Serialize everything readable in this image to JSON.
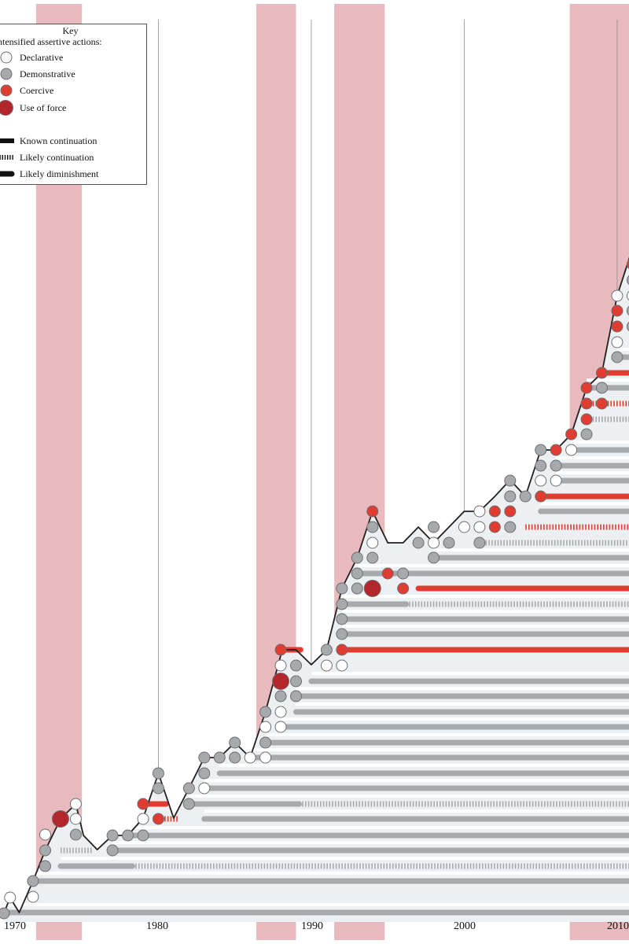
{
  "chart_data": {
    "type": "step-line",
    "x_ticks": [
      "1970",
      "1980",
      "1990",
      "2000",
      "2010"
    ],
    "shaded_periods": [
      [
        1971.3,
        1974.3
      ],
      [
        1985.7,
        1988.3
      ],
      [
        1990.8,
        1994.1
      ],
      [
        2006.2,
        2011
      ]
    ],
    "key": {
      "title": "Key",
      "subtitle": "Intensified assertive actions:",
      "markers": [
        {
          "id": "declarative",
          "label": "Declarative",
          "color": "#ffffff"
        },
        {
          "id": "demonstrative",
          "label": "Demonstrative",
          "color": "#a7a9ac"
        },
        {
          "id": "coercive",
          "label": "Coercive",
          "color": "#e03c31"
        },
        {
          "id": "force",
          "label": "Use of force",
          "color": "#b3262b"
        }
      ],
      "lines": [
        {
          "id": "known",
          "label": "Known continuation"
        },
        {
          "id": "likely",
          "label": "Likely continuation"
        },
        {
          "id": "dim",
          "label": "Likely diminishment"
        }
      ]
    },
    "colors": {
      "shade": "#e8b9bd",
      "band": "#edf0f3",
      "grey": "#a7a9ac",
      "red": "#e03c31",
      "darkred": "#b3262b",
      "line": "#231f20"
    },
    "outline": [
      [
        1969.2,
        1161
      ],
      [
        1969.6,
        1141
      ],
      [
        1970.2,
        1160
      ],
      [
        1971.1,
        1120
      ],
      [
        1971.9,
        1081
      ],
      [
        1972.9,
        1041
      ],
      [
        1973.9,
        1022
      ],
      [
        1974.4,
        1062
      ],
      [
        1975.3,
        1080
      ],
      [
        1976.3,
        1062
      ],
      [
        1977.3,
        1062
      ],
      [
        1978.3,
        1040
      ],
      [
        1979.3,
        983
      ],
      [
        1980.3,
        1040
      ],
      [
        1981.3,
        1002
      ],
      [
        1982.3,
        963
      ],
      [
        1983.3,
        963
      ],
      [
        1984.3,
        944
      ],
      [
        1985.3,
        963
      ],
      [
        1986.3,
        905
      ],
      [
        1987.4,
        826
      ],
      [
        1988.3,
        826
      ],
      [
        1989.3,
        845
      ],
      [
        1990.3,
        826
      ],
      [
        1991.3,
        748
      ],
      [
        1992.3,
        709
      ],
      [
        1993.3,
        650
      ],
      [
        1994.3,
        690
      ],
      [
        1995.3,
        690
      ],
      [
        1996.3,
        670
      ],
      [
        1997.3,
        690
      ],
      [
        1998.3,
        670
      ],
      [
        1999.3,
        650
      ],
      [
        2000.3,
        650
      ],
      [
        2001.3,
        631
      ],
      [
        2002.3,
        610
      ],
      [
        2003.3,
        631
      ],
      [
        2004.3,
        572
      ],
      [
        2005.3,
        572
      ],
      [
        2006.3,
        552
      ],
      [
        2007.3,
        493
      ],
      [
        2008.3,
        474
      ],
      [
        2009.3,
        376
      ],
      [
        2010.3,
        316
      ],
      [
        2011.3,
        280
      ]
    ],
    "tracks": [
      {
        "y": 1160,
        "x0": 1969.2,
        "x1": 2011.5,
        "style": "known",
        "color": "grey"
      },
      {
        "y": 1120,
        "x0": 1971.1,
        "x1": 2011.5,
        "style": "known",
        "color": "grey"
      },
      {
        "y": 1101,
        "x0": 1972.9,
        "x1": 1977.6,
        "style": "known",
        "color": "grey"
      },
      {
        "y": 1101,
        "x0": 1977.6,
        "x1": 2011.5,
        "style": "likely",
        "color": "grey"
      },
      {
        "y": 1081,
        "x0": 1972.9,
        "x1": 1975.0,
        "style": "likely",
        "color": "grey"
      },
      {
        "y": 1081,
        "x0": 1976.3,
        "x1": 2011.5,
        "style": "known",
        "color": "grey"
      },
      {
        "y": 1062,
        "x0": 1977.3,
        "x1": 2011.5,
        "style": "known",
        "color": "grey"
      },
      {
        "y": 1041,
        "x0": 1982.3,
        "x1": 2011.5,
        "style": "known",
        "color": "grey"
      },
      {
        "y": 1022,
        "x0": 1981.3,
        "x1": 1988.5,
        "style": "known",
        "color": "grey"
      },
      {
        "y": 1022,
        "x0": 1988.5,
        "x1": 2011.5,
        "style": "likely",
        "color": "grey"
      },
      {
        "y": 1002,
        "x0": 1982.3,
        "x1": 2011.5,
        "style": "known",
        "color": "grey"
      },
      {
        "y": 983,
        "x0": 1983.3,
        "x1": 2011.5,
        "style": "known",
        "color": "grey"
      },
      {
        "y": 963,
        "x0": 1985.3,
        "x1": 2011.5,
        "style": "known",
        "color": "grey"
      },
      {
        "y": 944,
        "x0": 1986.3,
        "x1": 2011.5,
        "style": "known",
        "color": "grey"
      },
      {
        "y": 924,
        "x0": 1987.3,
        "x1": 2011.5,
        "style": "known",
        "color": "grey"
      },
      {
        "y": 905,
        "x0": 1988.3,
        "x1": 2011.5,
        "style": "known",
        "color": "grey"
      },
      {
        "y": 885,
        "x0": 1988.3,
        "x1": 2011.5,
        "style": "known",
        "color": "grey"
      },
      {
        "y": 866,
        "x0": 1989.3,
        "x1": 2011.5,
        "style": "known",
        "color": "grey"
      },
      {
        "y": 826,
        "x0": 1991.3,
        "x1": 2011.5,
        "style": "known",
        "color": "red"
      },
      {
        "y": 806,
        "x0": 1991.3,
        "x1": 2011.5,
        "style": "known",
        "color": "grey"
      },
      {
        "y": 787,
        "x0": 1991.3,
        "x1": 2011.5,
        "style": "known",
        "color": "grey"
      },
      {
        "y": 768,
        "x0": 1991.3,
        "x1": 1995.5,
        "style": "known",
        "color": "grey"
      },
      {
        "y": 768,
        "x0": 1995.5,
        "x1": 2011.5,
        "style": "likely",
        "color": "grey"
      },
      {
        "y": 748,
        "x0": 1996.3,
        "x1": 2011.5,
        "style": "known",
        "color": "red"
      },
      {
        "y": 729,
        "x0": 1992.3,
        "x1": 2011.5,
        "style": "known",
        "color": "grey"
      },
      {
        "y": 709,
        "x0": 1997.3,
        "x1": 2011.5,
        "style": "known",
        "color": "grey"
      },
      {
        "y": 690,
        "x0": 2000.3,
        "x1": 2011.5,
        "style": "likely",
        "color": "grey"
      },
      {
        "y": 670,
        "x0": 2003.3,
        "x1": 2011.5,
        "style": "likely",
        "color": "red"
      },
      {
        "y": 650,
        "x0": 2004.3,
        "x1": 2011.5,
        "style": "known",
        "color": "grey"
      },
      {
        "y": 631,
        "x0": 2004.3,
        "x1": 2011.5,
        "style": "known",
        "color": "red"
      },
      {
        "y": 611,
        "x0": 2005.3,
        "x1": 2011.5,
        "style": "known",
        "color": "grey"
      },
      {
        "y": 592,
        "x0": 2005.3,
        "x1": 2011.5,
        "style": "known",
        "color": "grey"
      },
      {
        "y": 572,
        "x0": 2006.3,
        "x1": 2011.5,
        "style": "known",
        "color": "grey"
      },
      {
        "y": 533,
        "x0": 2007.3,
        "x1": 2011.5,
        "style": "likely",
        "color": "grey"
      },
      {
        "y": 513,
        "x0": 2007.3,
        "x1": 2011.5,
        "style": "likely",
        "color": "red"
      },
      {
        "y": 493,
        "x0": 2007.3,
        "x1": 2011.5,
        "style": "known",
        "color": "grey"
      },
      {
        "y": 474,
        "x0": 2008.3,
        "x1": 2011.5,
        "style": "known",
        "color": "red"
      },
      {
        "y": 454,
        "x0": 2009.3,
        "x1": 2011.5,
        "style": "known",
        "color": "grey"
      },
      {
        "y": 1022,
        "x0": 1978.6,
        "x1": 1979.8,
        "style": "known",
        "color": "red"
      },
      {
        "y": 1041,
        "x0": 1979.3,
        "x1": 1980.6,
        "style": "likely",
        "color": "red"
      },
      {
        "y": 826,
        "x0": 1987.4,
        "x1": 1988.6,
        "style": "known",
        "color": "red"
      }
    ],
    "markers": [
      {
        "x": 1969.2,
        "y": 1161,
        "type": "demonstrative"
      },
      {
        "x": 1969.6,
        "y": 1141,
        "type": "declarative"
      },
      {
        "x": 1971.1,
        "y": 1140,
        "type": "declarative"
      },
      {
        "x": 1971.1,
        "y": 1120,
        "type": "demonstrative"
      },
      {
        "x": 1971.9,
        "y": 1101,
        "type": "demonstrative"
      },
      {
        "x": 1971.9,
        "y": 1081,
        "type": "demonstrative"
      },
      {
        "x": 1971.9,
        "y": 1061,
        "type": "declarative"
      },
      {
        "x": 1972.9,
        "y": 1041,
        "type": "force"
      },
      {
        "x": 1973.9,
        "y": 1061,
        "type": "demonstrative"
      },
      {
        "x": 1973.9,
        "y": 1041,
        "type": "declarative"
      },
      {
        "x": 1973.9,
        "y": 1022,
        "type": "declarative"
      },
      {
        "x": 1976.3,
        "y": 1081,
        "type": "demonstrative"
      },
      {
        "x": 1976.3,
        "y": 1062,
        "type": "demonstrative"
      },
      {
        "x": 1977.3,
        "y": 1062,
        "type": "demonstrative"
      },
      {
        "x": 1978.3,
        "y": 1062,
        "type": "demonstrative"
      },
      {
        "x": 1978.3,
        "y": 1041,
        "type": "declarative"
      },
      {
        "x": 1978.3,
        "y": 1022,
        "type": "coercive"
      },
      {
        "x": 1979.3,
        "y": 1041,
        "type": "coercive"
      },
      {
        "x": 1979.3,
        "y": 1002,
        "type": "demonstrative"
      },
      {
        "x": 1979.3,
        "y": 983,
        "type": "demonstrative"
      },
      {
        "x": 1981.3,
        "y": 1022,
        "type": "demonstrative"
      },
      {
        "x": 1981.3,
        "y": 1002,
        "type": "demonstrative"
      },
      {
        "x": 1982.3,
        "y": 1002,
        "type": "declarative"
      },
      {
        "x": 1982.3,
        "y": 983,
        "type": "demonstrative"
      },
      {
        "x": 1982.3,
        "y": 963,
        "type": "demonstrative"
      },
      {
        "x": 1983.3,
        "y": 963,
        "type": "demonstrative"
      },
      {
        "x": 1984.3,
        "y": 963,
        "type": "demonstrative"
      },
      {
        "x": 1984.3,
        "y": 944,
        "type": "demonstrative"
      },
      {
        "x": 1985.3,
        "y": 963,
        "type": "declarative"
      },
      {
        "x": 1986.3,
        "y": 963,
        "type": "declarative"
      },
      {
        "x": 1986.3,
        "y": 944,
        "type": "demonstrative"
      },
      {
        "x": 1986.3,
        "y": 924,
        "type": "declarative"
      },
      {
        "x": 1986.3,
        "y": 905,
        "type": "demonstrative"
      },
      {
        "x": 1987.3,
        "y": 924,
        "type": "declarative"
      },
      {
        "x": 1987.3,
        "y": 905,
        "type": "declarative"
      },
      {
        "x": 1987.3,
        "y": 885,
        "type": "demonstrative"
      },
      {
        "x": 1987.3,
        "y": 866,
        "type": "force"
      },
      {
        "x": 1987.3,
        "y": 846,
        "type": "declarative"
      },
      {
        "x": 1987.3,
        "y": 826,
        "type": "coercive"
      },
      {
        "x": 1988.3,
        "y": 885,
        "type": "demonstrative"
      },
      {
        "x": 1988.3,
        "y": 866,
        "type": "demonstrative"
      },
      {
        "x": 1988.3,
        "y": 846,
        "type": "demonstrative"
      },
      {
        "x": 1990.3,
        "y": 846,
        "type": "declarative"
      },
      {
        "x": 1990.3,
        "y": 826,
        "type": "demonstrative"
      },
      {
        "x": 1991.3,
        "y": 846,
        "type": "declarative"
      },
      {
        "x": 1991.3,
        "y": 826,
        "type": "coercive"
      },
      {
        "x": 1991.3,
        "y": 806,
        "type": "demonstrative"
      },
      {
        "x": 1991.3,
        "y": 787,
        "type": "demonstrative"
      },
      {
        "x": 1991.3,
        "y": 768,
        "type": "demonstrative"
      },
      {
        "x": 1991.3,
        "y": 748,
        "type": "demonstrative"
      },
      {
        "x": 1992.3,
        "y": 748,
        "type": "demonstrative"
      },
      {
        "x": 1992.3,
        "y": 729,
        "type": "demonstrative"
      },
      {
        "x": 1992.3,
        "y": 709,
        "type": "demonstrative"
      },
      {
        "x": 1993.3,
        "y": 748,
        "type": "force"
      },
      {
        "x": 1993.3,
        "y": 709,
        "type": "demonstrative"
      },
      {
        "x": 1993.3,
        "y": 690,
        "type": "declarative"
      },
      {
        "x": 1993.3,
        "y": 670,
        "type": "demonstrative"
      },
      {
        "x": 1993.3,
        "y": 650,
        "type": "coercive"
      },
      {
        "x": 1994.3,
        "y": 729,
        "type": "coercive"
      },
      {
        "x": 1995.3,
        "y": 729,
        "type": "demonstrative"
      },
      {
        "x": 1995.3,
        "y": 748,
        "type": "coercive"
      },
      {
        "x": 1996.3,
        "y": 690,
        "type": "demonstrative"
      },
      {
        "x": 1997.3,
        "y": 709,
        "type": "demonstrative"
      },
      {
        "x": 1997.3,
        "y": 690,
        "type": "declarative"
      },
      {
        "x": 1997.3,
        "y": 670,
        "type": "demonstrative"
      },
      {
        "x": 1998.3,
        "y": 690,
        "type": "demonstrative"
      },
      {
        "x": 1999.3,
        "y": 670,
        "type": "declarative"
      },
      {
        "x": 2000.3,
        "y": 690,
        "type": "demonstrative"
      },
      {
        "x": 2000.3,
        "y": 670,
        "type": "declarative"
      },
      {
        "x": 2000.3,
        "y": 650,
        "type": "declarative"
      },
      {
        "x": 2001.3,
        "y": 670,
        "type": "coercive"
      },
      {
        "x": 2001.3,
        "y": 650,
        "type": "coercive"
      },
      {
        "x": 2002.3,
        "y": 670,
        "type": "demonstrative"
      },
      {
        "x": 2002.3,
        "y": 650,
        "type": "coercive"
      },
      {
        "x": 2002.3,
        "y": 631,
        "type": "demonstrative"
      },
      {
        "x": 2002.3,
        "y": 611,
        "type": "demonstrative"
      },
      {
        "x": 2003.3,
        "y": 631,
        "type": "demonstrative"
      },
      {
        "x": 2004.3,
        "y": 631,
        "type": "coercive"
      },
      {
        "x": 2004.3,
        "y": 611,
        "type": "declarative"
      },
      {
        "x": 2004.3,
        "y": 592,
        "type": "demonstrative"
      },
      {
        "x": 2004.3,
        "y": 572,
        "type": "demonstrative"
      },
      {
        "x": 2005.3,
        "y": 611,
        "type": "declarative"
      },
      {
        "x": 2005.3,
        "y": 592,
        "type": "demonstrative"
      },
      {
        "x": 2005.3,
        "y": 572,
        "type": "coercive"
      },
      {
        "x": 2006.3,
        "y": 572,
        "type": "declarative"
      },
      {
        "x": 2006.3,
        "y": 552,
        "type": "coercive"
      },
      {
        "x": 2007.3,
        "y": 552,
        "type": "demonstrative"
      },
      {
        "x": 2007.3,
        "y": 533,
        "type": "coercive"
      },
      {
        "x": 2007.3,
        "y": 513,
        "type": "coercive"
      },
      {
        "x": 2007.3,
        "y": 493,
        "type": "coercive"
      },
      {
        "x": 2008.3,
        "y": 513,
        "type": "coercive"
      },
      {
        "x": 2008.3,
        "y": 493,
        "type": "demonstrative"
      },
      {
        "x": 2008.3,
        "y": 474,
        "type": "coercive"
      },
      {
        "x": 2009.3,
        "y": 454,
        "type": "demonstrative"
      },
      {
        "x": 2009.3,
        "y": 435,
        "type": "declarative"
      },
      {
        "x": 2009.3,
        "y": 415,
        "type": "coercive"
      },
      {
        "x": 2009.3,
        "y": 395,
        "type": "coercive"
      },
      {
        "x": 2009.3,
        "y": 376,
        "type": "declarative"
      },
      {
        "x": 2010.3,
        "y": 415,
        "type": "demonstrative"
      },
      {
        "x": 2010.3,
        "y": 395,
        "type": "demonstrative"
      },
      {
        "x": 2010.3,
        "y": 376,
        "type": "declarative"
      },
      {
        "x": 2010.3,
        "y": 356,
        "type": "demonstrative"
      },
      {
        "x": 2010.3,
        "y": 336,
        "type": "coercive"
      },
      {
        "x": 2011.3,
        "y": 376,
        "type": "demonstrative"
      },
      {
        "x": 2011.3,
        "y": 356,
        "type": "coercive"
      },
      {
        "x": 2011.3,
        "y": 336,
        "type": "coercive"
      },
      {
        "x": 2011.3,
        "y": 316,
        "type": "declarative"
      }
    ]
  }
}
